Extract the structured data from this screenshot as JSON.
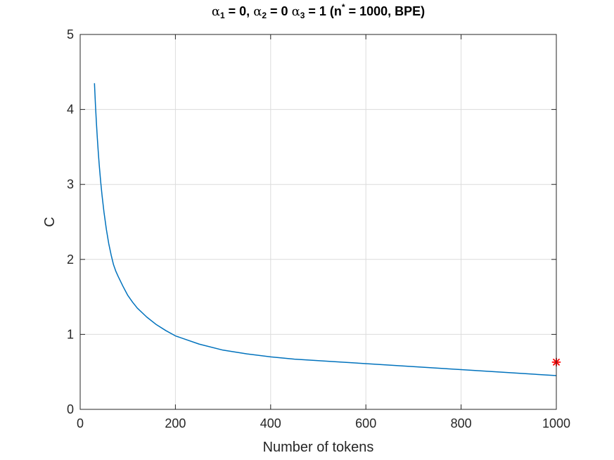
{
  "chart_data": {
    "type": "line",
    "title": {
      "parts": [
        {
          "text": "α",
          "style": "normal"
        },
        {
          "text": "1",
          "style": "sub"
        },
        {
          "text": " = 0, ",
          "style": "normal"
        },
        {
          "text": "α",
          "style": "normal"
        },
        {
          "text": "2",
          "style": "sub"
        },
        {
          "text": " = 0 ",
          "style": "normal"
        },
        {
          "text": "α",
          "style": "normal"
        },
        {
          "text": "3",
          "style": "sub"
        },
        {
          "text": " = 1 (n",
          "style": "normal"
        },
        {
          "text": "*",
          "style": "sup"
        },
        {
          "text": " = 1000, BPE)",
          "style": "normal"
        }
      ]
    },
    "xlabel": "Number of tokens",
    "ylabel": "C",
    "xlim": [
      0,
      1000
    ],
    "ylim": [
      0,
      5
    ],
    "xticks": [
      0,
      200,
      400,
      600,
      800,
      1000
    ],
    "yticks": [
      0,
      1,
      2,
      3,
      4,
      5
    ],
    "grid": true,
    "line_color": "#0072BD",
    "series": [
      {
        "x": [
          30,
          32,
          34,
          36,
          38,
          40,
          43,
          46,
          50,
          55,
          60,
          65,
          70,
          75,
          80,
          90,
          100,
          110,
          120,
          140,
          160,
          180,
          200,
          250,
          300,
          350,
          400,
          450,
          500,
          550,
          600,
          650,
          700,
          750,
          800,
          850,
          900,
          950,
          1000
        ],
        "y": [
          4.35,
          4.07,
          3.83,
          3.62,
          3.43,
          3.26,
          3.04,
          2.85,
          2.63,
          2.4,
          2.21,
          2.06,
          1.93,
          1.84,
          1.77,
          1.64,
          1.52,
          1.43,
          1.35,
          1.23,
          1.13,
          1.05,
          0.98,
          0.87,
          0.79,
          0.74,
          0.7,
          0.67,
          0.65,
          0.63,
          0.61,
          0.59,
          0.57,
          0.55,
          0.53,
          0.51,
          0.49,
          0.47,
          0.45
        ]
      }
    ],
    "marker": {
      "x": 1000,
      "y": 0.63,
      "symbol": "asterisk",
      "color": "#FF0000"
    }
  }
}
